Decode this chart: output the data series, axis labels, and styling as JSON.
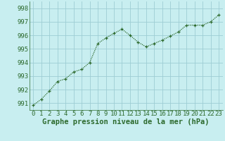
{
  "x": [
    0,
    1,
    2,
    3,
    4,
    5,
    6,
    7,
    8,
    9,
    10,
    11,
    12,
    13,
    14,
    15,
    16,
    17,
    18,
    19,
    20,
    21,
    22,
    23
  ],
  "y": [
    990.85,
    991.3,
    991.9,
    992.6,
    992.8,
    993.3,
    993.5,
    994.0,
    995.4,
    995.8,
    996.15,
    996.45,
    996.0,
    995.5,
    995.15,
    995.4,
    995.65,
    995.95,
    996.25,
    996.75,
    996.75,
    996.75,
    997.0,
    997.5
  ],
  "line_color": "#2d6a2d",
  "marker": "+",
  "background_color": "#c8eef0",
  "grid_color": "#9ecdd4",
  "xlabel": "Graphe pression niveau de la mer (hPa)",
  "xlabel_fontsize": 7.5,
  "ylabel_ticks": [
    991,
    992,
    993,
    994,
    995,
    996,
    997,
    998
  ],
  "ylim": [
    990.5,
    998.5
  ],
  "xlim": [
    -0.5,
    23.5
  ],
  "tick_fontsize": 6.5,
  "linewidth": 0.9,
  "markersize": 3.5,
  "markeredgewidth": 0.9
}
